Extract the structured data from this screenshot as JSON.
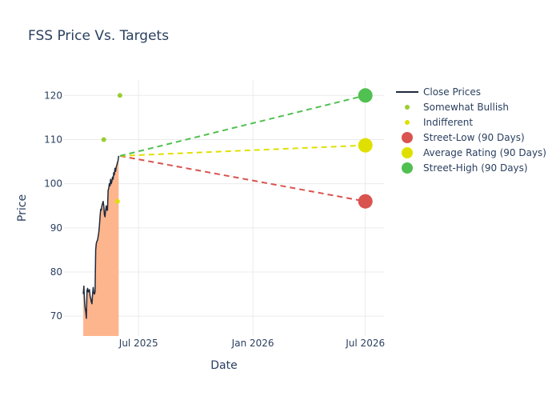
{
  "chart_data": {
    "type": "line",
    "title": "FSS Price Vs. Targets",
    "xlabel": "Date",
    "ylabel": "Price",
    "xlim": [
      "2025-03-03",
      "2026-07-31"
    ],
    "ylim": [
      65.5,
      123.5
    ],
    "x_ticks": [
      {
        "date": "2025-07-01",
        "label": "Jul 2025"
      },
      {
        "date": "2026-01-01",
        "label": "Jan 2026"
      },
      {
        "date": "2026-07-01",
        "label": "Jul 2026"
      }
    ],
    "y_ticks": [
      70,
      80,
      90,
      100,
      110,
      120
    ],
    "grid": true,
    "legend_position": "right",
    "series": [
      {
        "name": "Close Prices",
        "kind": "line-area",
        "color": "#1f2a3c",
        "fill_color": "#fdb58e",
        "points": [
          [
            "2025-04-03",
            75.0
          ],
          [
            "2025-04-04",
            76.8
          ],
          [
            "2025-04-05",
            73.5
          ],
          [
            "2025-04-06",
            71.8
          ],
          [
            "2025-04-07",
            71.0
          ],
          [
            "2025-04-08",
            69.5
          ],
          [
            "2025-04-09",
            75.8
          ],
          [
            "2025-04-10",
            76.3
          ],
          [
            "2025-04-11",
            75.5
          ],
          [
            "2025-04-13",
            76.0
          ],
          [
            "2025-04-14",
            74.5
          ],
          [
            "2025-04-15",
            74.0
          ],
          [
            "2025-04-16",
            73.2
          ],
          [
            "2025-04-17",
            72.8
          ],
          [
            "2025-04-18",
            75.0
          ],
          [
            "2025-04-19",
            76.5
          ],
          [
            "2025-04-20",
            75.2
          ],
          [
            "2025-04-21",
            75.0
          ],
          [
            "2025-04-22",
            75.5
          ],
          [
            "2025-04-23",
            85.0
          ],
          [
            "2025-04-24",
            86.5
          ],
          [
            "2025-04-25",
            87.0
          ],
          [
            "2025-04-26",
            87.2
          ],
          [
            "2025-04-28",
            89.0
          ],
          [
            "2025-04-29",
            90.5
          ],
          [
            "2025-04-30",
            92.5
          ],
          [
            "2025-05-01",
            94.2
          ],
          [
            "2025-05-02",
            94.0
          ],
          [
            "2025-05-03",
            95.0
          ],
          [
            "2025-05-04",
            95.5
          ],
          [
            "2025-05-05",
            96.0
          ],
          [
            "2025-05-06",
            95.0
          ],
          [
            "2025-05-07",
            93.0
          ],
          [
            "2025-05-08",
            92.5
          ],
          [
            "2025-05-09",
            94.0
          ],
          [
            "2025-05-10",
            95.0
          ],
          [
            "2025-05-11",
            94.0
          ],
          [
            "2025-05-12",
            94.0
          ],
          [
            "2025-05-13",
            98.5
          ],
          [
            "2025-05-14",
            99.0
          ],
          [
            "2025-05-15",
            100.0
          ],
          [
            "2025-05-16",
            99.5
          ],
          [
            "2025-05-17",
            101.0
          ],
          [
            "2025-05-18",
            100.0
          ],
          [
            "2025-05-19",
            100.5
          ],
          [
            "2025-05-20",
            101.5
          ],
          [
            "2025-05-21",
            101.0
          ],
          [
            "2025-05-22",
            102.5
          ],
          [
            "2025-05-23",
            102.0
          ],
          [
            "2025-05-24",
            103.5
          ],
          [
            "2025-05-25",
            102.8
          ],
          [
            "2025-05-26",
            103.8
          ],
          [
            "2025-05-27",
            104.2
          ],
          [
            "2025-05-28",
            104.8
          ],
          [
            "2025-05-29",
            105.2
          ],
          [
            "2025-05-30",
            106.3
          ]
        ]
      },
      {
        "name": "Somewhat Bullish",
        "kind": "markers",
        "color": "#9acd32",
        "points": [
          [
            "2025-05-06",
            110
          ],
          [
            "2025-06-01",
            120
          ]
        ]
      },
      {
        "name": "Indifferent",
        "kind": "markers",
        "color": "#e0e000",
        "points": [
          [
            "2025-05-28",
            96
          ]
        ]
      },
      {
        "name": "Street-Low (90 Days)",
        "kind": "target",
        "color": "#d9534f",
        "points": [
          [
            "2025-06-01",
            106.3
          ],
          [
            "2026-07-01",
            96
          ]
        ]
      },
      {
        "name": "Average Rating (90 Days)",
        "kind": "target",
        "color": "#e0e000",
        "points": [
          [
            "2025-06-01",
            106.3
          ],
          [
            "2026-07-01",
            108.7
          ]
        ]
      },
      {
        "name": "Street-High (90 Days)",
        "kind": "target",
        "color": "#50c050",
        "points": [
          [
            "2025-06-01",
            106.3
          ],
          [
            "2026-07-01",
            120
          ]
        ]
      }
    ]
  }
}
